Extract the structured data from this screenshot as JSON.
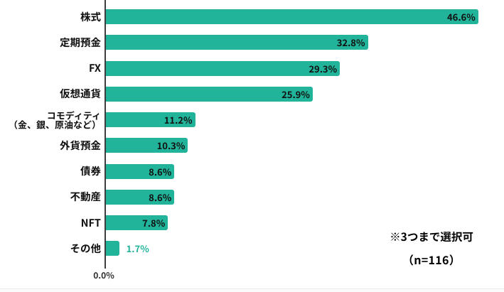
{
  "chart_data": {
    "type": "bar",
    "orientation": "horizontal",
    "categories": [
      "株式",
      "定期預金",
      "FX",
      "仮想通貨",
      "コモディティ\n（金、銀、原油など）",
      "外貨預金",
      "債券",
      "不動産",
      "NFT",
      "その他"
    ],
    "values": [
      46.6,
      32.8,
      29.3,
      25.9,
      11.2,
      10.3,
      8.6,
      8.6,
      7.8,
      1.7
    ],
    "value_labels": [
      "46.6%",
      "32.8%",
      "29.3%",
      "25.9%",
      "11.2%",
      "10.3%",
      "8.6%",
      "8.6%",
      "7.8%",
      "1.7%"
    ],
    "unit": "%",
    "xlim": [
      0,
      50
    ],
    "x_tick_labels": [
      "0.0%"
    ],
    "grid": false,
    "legend": false,
    "bar_color": "#21b49a",
    "value_label_color_inside": "#111111",
    "value_label_color_outside": "#21b49a",
    "annotations": [
      "※3つまで選択可",
      "（n=116）"
    ]
  },
  "axis": {
    "zero_label": "0.0%"
  },
  "note": {
    "line1": "※3つまで選択可",
    "line2": "（n=116）"
  }
}
